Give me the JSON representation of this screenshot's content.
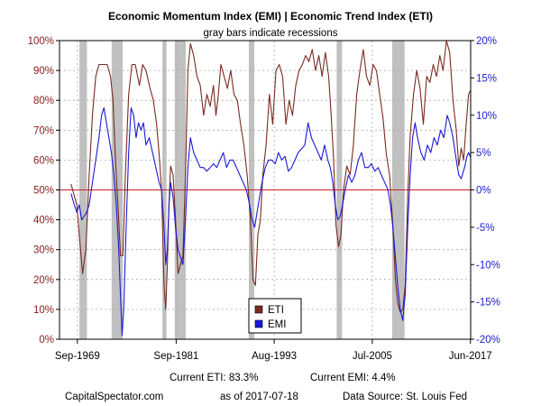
{
  "chart_data": {
    "type": "line",
    "title": "Economic Momentum Index (EMI) | Economic Trend Index (ETI)",
    "subtitle": "gray bars indicate recessions",
    "x_start": 1967.5,
    "x_end": 2017.45,
    "x_ticks": [
      {
        "value": 1969.67,
        "label": "Sep-1969"
      },
      {
        "value": 1981.67,
        "label": "Sep-1981"
      },
      {
        "value": 1993.58,
        "label": "Aug-1993"
      },
      {
        "value": 2005.5,
        "label": "Jul-2005"
      },
      {
        "value": 2017.42,
        "label": "Jun-2017"
      }
    ],
    "y_left": {
      "min": 0,
      "max": 100,
      "ticks": [
        "0%",
        "10%",
        "20%",
        "30%",
        "40%",
        "50%",
        "60%",
        "70%",
        "80%",
        "90%",
        "100%"
      ]
    },
    "y_right": {
      "min": -20,
      "max": 20,
      "ticks": [
        "-20%",
        "-15%",
        "-10%",
        "-5%",
        "0%",
        "5%",
        "10%",
        "15%",
        "20%"
      ]
    },
    "reference_line": {
      "axis": "left",
      "value": 50,
      "color": "#d11e1e"
    },
    "recessions": [
      [
        1969.92,
        1970.83
      ],
      [
        1973.83,
        1975.17
      ],
      [
        1980.0,
        1980.5
      ],
      [
        1981.5,
        1982.83
      ],
      [
        1990.5,
        1991.17
      ],
      [
        2001.17,
        2001.83
      ],
      [
        2007.92,
        2009.42
      ]
    ],
    "series": [
      {
        "name": "ETI",
        "axis": "left",
        "color": "#7b2a22",
        "points": [
          [
            1968.9,
            52
          ],
          [
            1969.3,
            48
          ],
          [
            1969.6,
            45
          ],
          [
            1969.9,
            35
          ],
          [
            1970.3,
            22
          ],
          [
            1970.7,
            30
          ],
          [
            1971.1,
            55
          ],
          [
            1971.5,
            75
          ],
          [
            1971.9,
            88
          ],
          [
            1972.3,
            92
          ],
          [
            1972.8,
            92
          ],
          [
            1973.3,
            92
          ],
          [
            1973.7,
            88
          ],
          [
            1974.0,
            80
          ],
          [
            1974.3,
            60
          ],
          [
            1974.6,
            45
          ],
          [
            1974.9,
            28
          ],
          [
            1975.2,
            28
          ],
          [
            1975.5,
            55
          ],
          [
            1975.9,
            82
          ],
          [
            1976.3,
            92
          ],
          [
            1976.7,
            92
          ],
          [
            1977.2,
            85
          ],
          [
            1977.6,
            92
          ],
          [
            1978.0,
            90
          ],
          [
            1978.5,
            84
          ],
          [
            1978.9,
            80
          ],
          [
            1979.3,
            72
          ],
          [
            1979.6,
            62
          ],
          [
            1979.9,
            50
          ],
          [
            1980.2,
            18
          ],
          [
            1980.4,
            10
          ],
          [
            1980.6,
            25
          ],
          [
            1980.8,
            45
          ],
          [
            1981.0,
            58
          ],
          [
            1981.3,
            55
          ],
          [
            1981.6,
            40
          ],
          [
            1981.9,
            22
          ],
          [
            1982.2,
            25
          ],
          [
            1982.5,
            28
          ],
          [
            1982.8,
            55
          ],
          [
            1983.1,
            90
          ],
          [
            1983.4,
            99
          ],
          [
            1983.8,
            95
          ],
          [
            1984.2,
            88
          ],
          [
            1984.6,
            85
          ],
          [
            1985.0,
            75
          ],
          [
            1985.4,
            82
          ],
          [
            1985.8,
            78
          ],
          [
            1986.2,
            85
          ],
          [
            1986.5,
            75
          ],
          [
            1986.8,
            82
          ],
          [
            1987.1,
            92
          ],
          [
            1987.5,
            88
          ],
          [
            1987.9,
            84
          ],
          [
            1988.3,
            90
          ],
          [
            1988.7,
            82
          ],
          [
            1989.1,
            80
          ],
          [
            1989.5,
            72
          ],
          [
            1989.9,
            65
          ],
          [
            1990.3,
            55
          ],
          [
            1990.7,
            40
          ],
          [
            1991.0,
            20
          ],
          [
            1991.3,
            18
          ],
          [
            1991.6,
            35
          ],
          [
            1991.9,
            40
          ],
          [
            1992.2,
            55
          ],
          [
            1992.6,
            65
          ],
          [
            1993.0,
            82
          ],
          [
            1993.4,
            72
          ],
          [
            1993.8,
            90
          ],
          [
            1994.2,
            92
          ],
          [
            1994.6,
            88
          ],
          [
            1995.0,
            72
          ],
          [
            1995.4,
            80
          ],
          [
            1995.8,
            75
          ],
          [
            1996.2,
            85
          ],
          [
            1996.6,
            90
          ],
          [
            1997.0,
            92
          ],
          [
            1997.4,
            95
          ],
          [
            1997.8,
            93
          ],
          [
            1998.2,
            97
          ],
          [
            1998.6,
            90
          ],
          [
            1999.0,
            95
          ],
          [
            1999.4,
            88
          ],
          [
            1999.8,
            96
          ],
          [
            2000.2,
            88
          ],
          [
            2000.5,
            75
          ],
          [
            2000.8,
            60
          ],
          [
            2001.1,
            38
          ],
          [
            2001.4,
            31
          ],
          [
            2001.7,
            35
          ],
          [
            2002.0,
            50
          ],
          [
            2002.4,
            58
          ],
          [
            2002.8,
            55
          ],
          [
            2003.2,
            65
          ],
          [
            2003.6,
            82
          ],
          [
            2004.0,
            90
          ],
          [
            2004.4,
            97
          ],
          [
            2004.8,
            88
          ],
          [
            2005.2,
            85
          ],
          [
            2005.6,
            92
          ],
          [
            2006.0,
            90
          ],
          [
            2006.4,
            82
          ],
          [
            2006.8,
            74
          ],
          [
            2007.2,
            62
          ],
          [
            2007.6,
            55
          ],
          [
            2008.0,
            38
          ],
          [
            2008.3,
            20
          ],
          [
            2008.6,
            12
          ],
          [
            2008.9,
            9
          ],
          [
            2009.2,
            10
          ],
          [
            2009.5,
            18
          ],
          [
            2009.8,
            48
          ],
          [
            2010.1,
            68
          ],
          [
            2010.5,
            82
          ],
          [
            2010.9,
            90
          ],
          [
            2011.3,
            84
          ],
          [
            2011.7,
            72
          ],
          [
            2012.1,
            88
          ],
          [
            2012.5,
            86
          ],
          [
            2012.9,
            92
          ],
          [
            2013.3,
            88
          ],
          [
            2013.7,
            95
          ],
          [
            2014.1,
            90
          ],
          [
            2014.5,
            100
          ],
          [
            2014.9,
            96
          ],
          [
            2015.3,
            80
          ],
          [
            2015.7,
            70
          ],
          [
            2016.0,
            58
          ],
          [
            2016.3,
            64
          ],
          [
            2016.6,
            60
          ],
          [
            2016.9,
            72
          ],
          [
            2017.2,
            82
          ],
          [
            2017.42,
            83.3
          ]
        ]
      },
      {
        "name": "EMI",
        "axis": "right",
        "color": "#1a1ad6",
        "points": [
          [
            1968.9,
            -0.5
          ],
          [
            1969.3,
            -2
          ],
          [
            1969.6,
            -3
          ],
          [
            1969.9,
            -2
          ],
          [
            1970.2,
            -4
          ],
          [
            1970.5,
            -3.5
          ],
          [
            1970.8,
            -3
          ],
          [
            1971.1,
            -2
          ],
          [
            1971.5,
            1
          ],
          [
            1971.9,
            4
          ],
          [
            1972.3,
            7
          ],
          [
            1972.6,
            10
          ],
          [
            1972.9,
            11
          ],
          [
            1973.2,
            9
          ],
          [
            1973.5,
            7
          ],
          [
            1973.8,
            5
          ],
          [
            1974.1,
            2
          ],
          [
            1974.4,
            -2
          ],
          [
            1974.7,
            -8
          ],
          [
            1974.9,
            -14
          ],
          [
            1975.1,
            -19.5
          ],
          [
            1975.3,
            -16
          ],
          [
            1975.6,
            -5
          ],
          [
            1975.9,
            5
          ],
          [
            1976.2,
            11
          ],
          [
            1976.5,
            10
          ],
          [
            1976.8,
            7
          ],
          [
            1977.1,
            9
          ],
          [
            1977.4,
            8
          ],
          [
            1977.7,
            9
          ],
          [
            1978.0,
            6
          ],
          [
            1978.4,
            7
          ],
          [
            1978.8,
            5
          ],
          [
            1979.2,
            3
          ],
          [
            1979.6,
            1
          ],
          [
            1979.9,
            0
          ],
          [
            1980.2,
            -5
          ],
          [
            1980.4,
            -10
          ],
          [
            1980.6,
            -8
          ],
          [
            1980.8,
            -2
          ],
          [
            1981.0,
            1
          ],
          [
            1981.3,
            -1
          ],
          [
            1981.6,
            -5
          ],
          [
            1981.9,
            -8
          ],
          [
            1982.2,
            -9
          ],
          [
            1982.5,
            -10
          ],
          [
            1982.8,
            -4
          ],
          [
            1983.1,
            3
          ],
          [
            1983.4,
            7
          ],
          [
            1983.8,
            5
          ],
          [
            1984.2,
            4
          ],
          [
            1984.6,
            3
          ],
          [
            1985.0,
            3
          ],
          [
            1985.4,
            2.5
          ],
          [
            1985.8,
            3
          ],
          [
            1986.2,
            3.5
          ],
          [
            1986.6,
            3
          ],
          [
            1987.0,
            4
          ],
          [
            1987.4,
            5
          ],
          [
            1987.8,
            3
          ],
          [
            1988.2,
            4
          ],
          [
            1988.6,
            4
          ],
          [
            1989.0,
            3
          ],
          [
            1989.4,
            2
          ],
          [
            1989.8,
            1
          ],
          [
            1990.2,
            0
          ],
          [
            1990.6,
            -2
          ],
          [
            1990.9,
            -4
          ],
          [
            1991.2,
            -5
          ],
          [
            1991.5,
            -3
          ],
          [
            1991.8,
            -1
          ],
          [
            1992.1,
            1
          ],
          [
            1992.5,
            3
          ],
          [
            1992.9,
            4
          ],
          [
            1993.3,
            4
          ],
          [
            1993.7,
            3.5
          ],
          [
            1994.1,
            5
          ],
          [
            1994.5,
            4
          ],
          [
            1994.9,
            4.5
          ],
          [
            1995.3,
            2.5
          ],
          [
            1995.7,
            3
          ],
          [
            1996.1,
            4
          ],
          [
            1996.5,
            5
          ],
          [
            1996.9,
            5.5
          ],
          [
            1997.3,
            6
          ],
          [
            1997.7,
            9
          ],
          [
            1998.1,
            7
          ],
          [
            1998.5,
            6
          ],
          [
            1998.9,
            5
          ],
          [
            1999.3,
            4
          ],
          [
            1999.7,
            6
          ],
          [
            2000.1,
            4
          ],
          [
            2000.4,
            3
          ],
          [
            2000.7,
            1
          ],
          [
            2001.0,
            -2
          ],
          [
            2001.3,
            -4
          ],
          [
            2001.6,
            -3.5
          ],
          [
            2001.9,
            -2
          ],
          [
            2002.2,
            0
          ],
          [
            2002.6,
            2
          ],
          [
            2003.0,
            1
          ],
          [
            2003.4,
            2
          ],
          [
            2003.8,
            4
          ],
          [
            2004.2,
            5
          ],
          [
            2004.6,
            3
          ],
          [
            2005.0,
            3
          ],
          [
            2005.4,
            3.5
          ],
          [
            2005.8,
            2.5
          ],
          [
            2006.2,
            3
          ],
          [
            2006.6,
            2
          ],
          [
            2007.0,
            1
          ],
          [
            2007.4,
            0
          ],
          [
            2007.7,
            -2
          ],
          [
            2008.0,
            -5
          ],
          [
            2008.3,
            -9
          ],
          [
            2008.6,
            -13
          ],
          [
            2008.9,
            -16
          ],
          [
            2009.2,
            -17.5
          ],
          [
            2009.5,
            -14
          ],
          [
            2009.8,
            -5
          ],
          [
            2010.1,
            2
          ],
          [
            2010.4,
            7
          ],
          [
            2010.7,
            9
          ],
          [
            2011.0,
            7
          ],
          [
            2011.4,
            5
          ],
          [
            2011.8,
            4
          ],
          [
            2012.2,
            6
          ],
          [
            2012.6,
            5
          ],
          [
            2013.0,
            7
          ],
          [
            2013.4,
            6
          ],
          [
            2013.8,
            8
          ],
          [
            2014.2,
            7
          ],
          [
            2014.6,
            10
          ],
          [
            2014.9,
            9
          ],
          [
            2015.3,
            7
          ],
          [
            2015.7,
            4
          ],
          [
            2016.0,
            2
          ],
          [
            2016.3,
            1.5
          ],
          [
            2016.7,
            3
          ],
          [
            2017.0,
            4.5
          ],
          [
            2017.2,
            5
          ],
          [
            2017.42,
            4.4
          ]
        ]
      }
    ]
  },
  "legend": {
    "eti": "ETI",
    "emi": "EMI"
  },
  "footer": {
    "current_eti": "Current ETI:  83.3%",
    "current_emi": "Current EMI:  4.4%",
    "site": "CapitalSpectator.com",
    "asof": "as of 2017-07-18",
    "source": "Data Source:  St. Louis Fed"
  }
}
